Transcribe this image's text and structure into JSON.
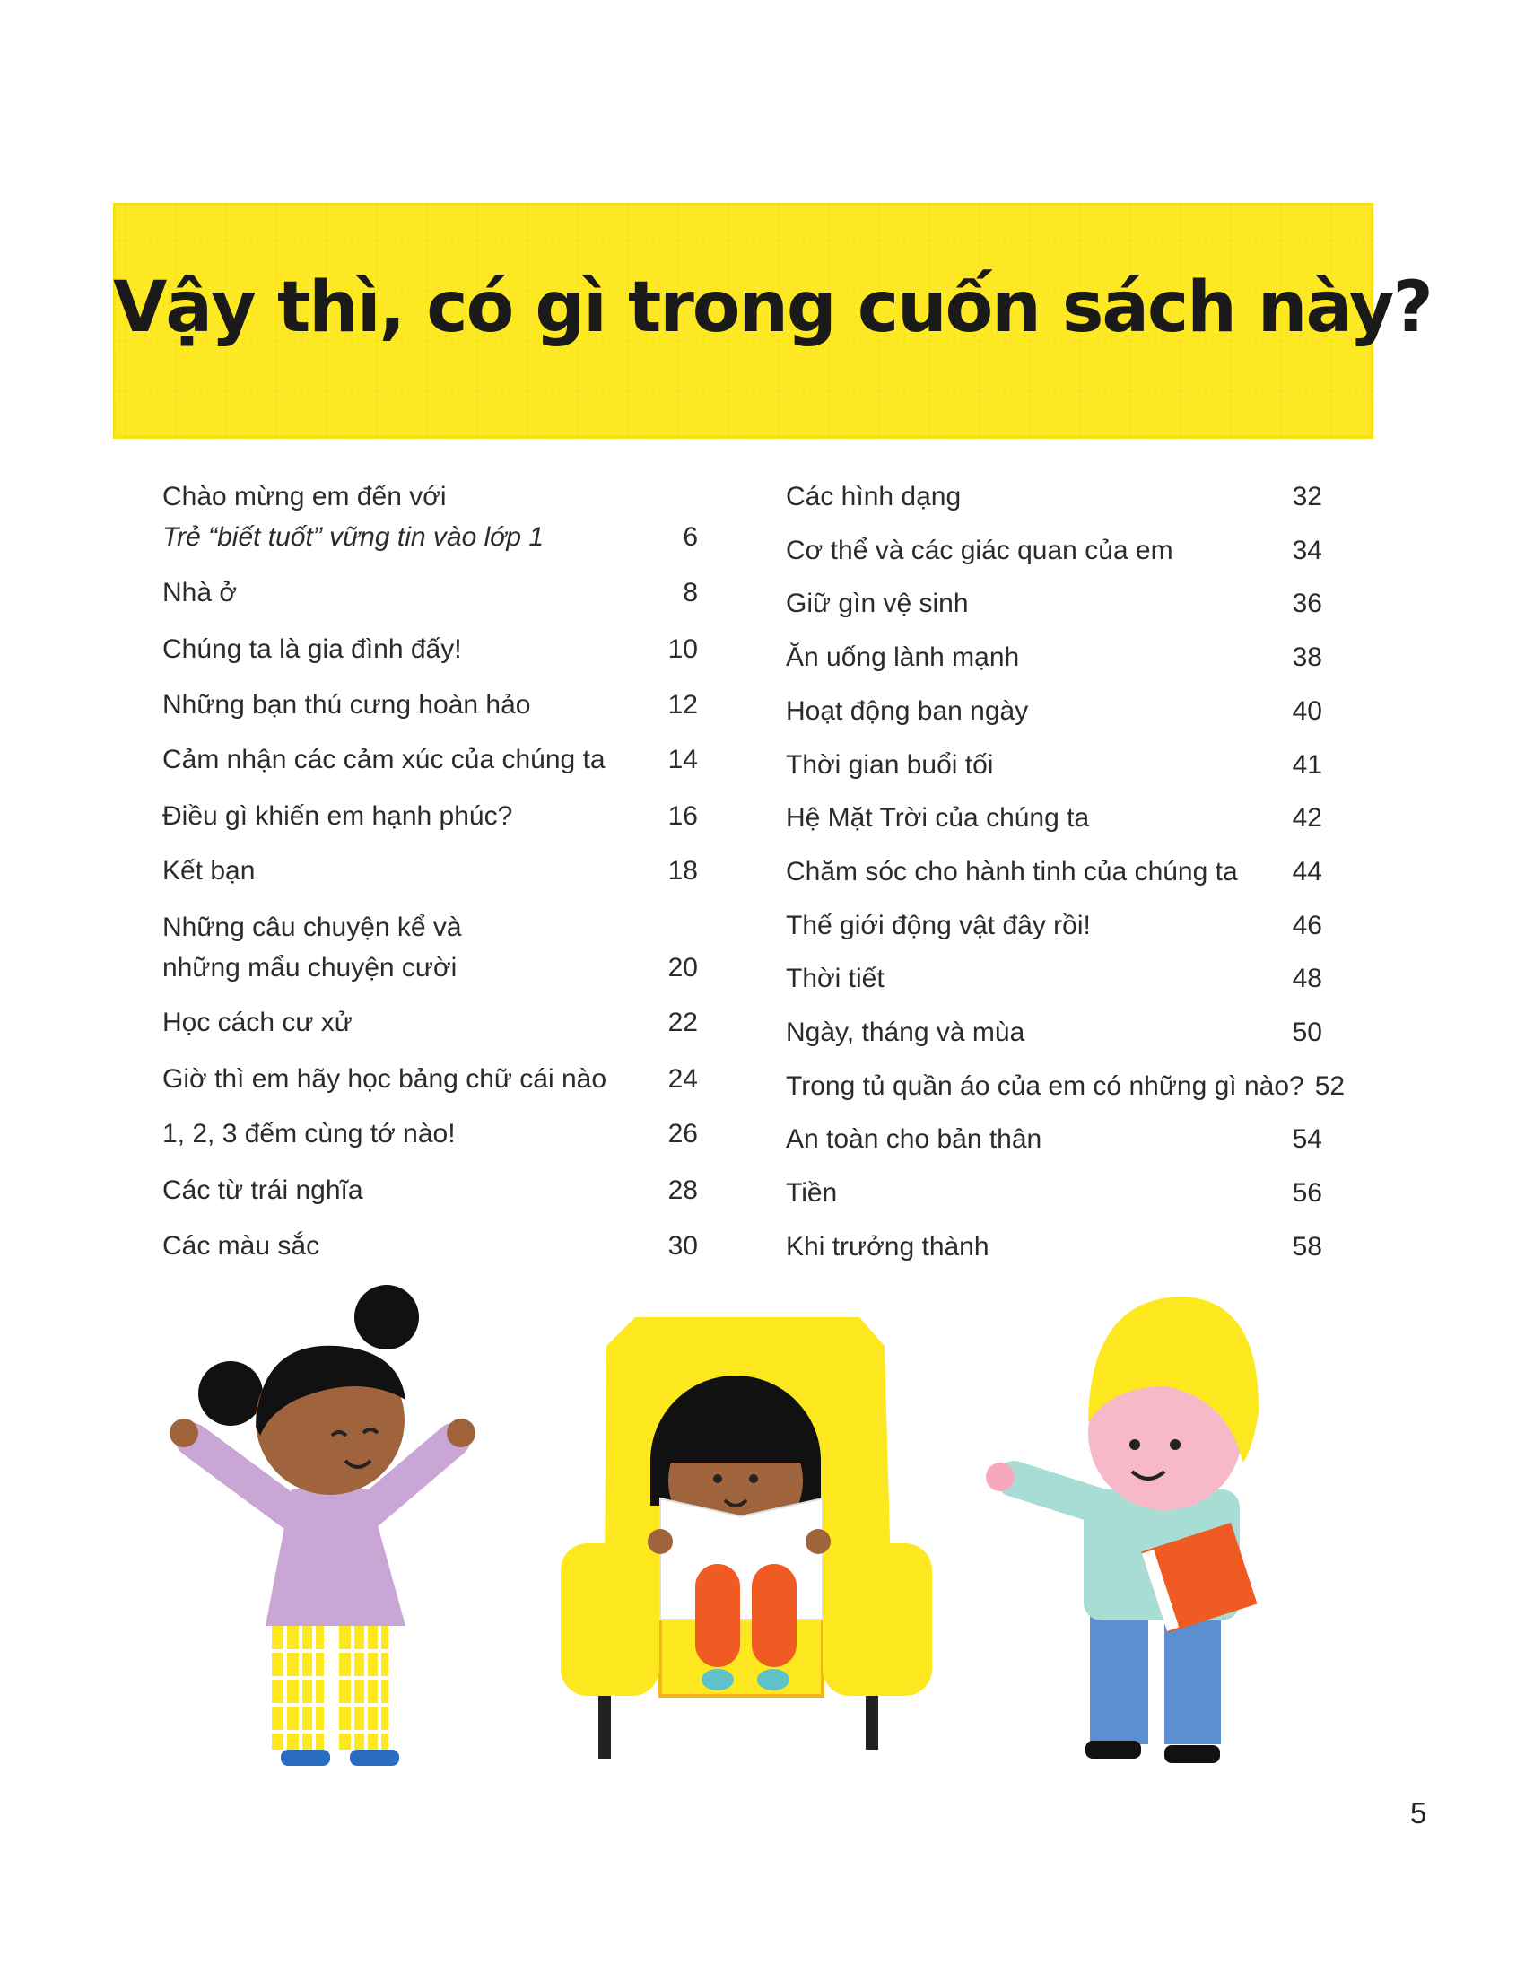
{
  "title": "Vậy thì, có gì trong cuốn sách này?",
  "colors": {
    "banner": "#fde81f",
    "text": "#2b2b2b"
  },
  "toc_left": [
    {
      "label": "Chào mừng em đến với",
      "label2": "Trẻ “biết tuốt” vững tin vào lớp 1",
      "page": "6"
    },
    {
      "label": "Nhà ở",
      "page": "8"
    },
    {
      "label": "Chúng ta là gia đình đấy!",
      "page": "10"
    },
    {
      "label": "Những bạn thú cưng hoàn hảo",
      "page": "12"
    },
    {
      "label": "Cảm nhận các cảm xúc của chúng ta",
      "page": "14"
    },
    {
      "label": "Điều gì khiến em hạnh phúc?",
      "page": "16"
    },
    {
      "label": "Kết bạn",
      "page": "18"
    },
    {
      "label": "Những câu chuyện kể và",
      "label2": "những mẩu chuyện cười",
      "page": "20"
    },
    {
      "label": "Học cách cư xử",
      "page": "22"
    },
    {
      "label": "Giờ thì em hãy học bảng chữ cái nào",
      "page": "24"
    },
    {
      "label": "1, 2, 3 đếm cùng tớ nào!",
      "page": "26"
    },
    {
      "label": "Các từ trái nghĩa",
      "page": "28"
    },
    {
      "label": "Các màu sắc",
      "page": "30"
    }
  ],
  "toc_right": [
    {
      "label": "Các hình dạng",
      "page": "32"
    },
    {
      "label": "Cơ thể và các giác quan của em",
      "page": "34"
    },
    {
      "label": "Giữ gìn vệ sinh",
      "page": "36"
    },
    {
      "label": "Ăn uống lành mạnh",
      "page": "38"
    },
    {
      "label": "Hoạt động ban ngày",
      "page": "40"
    },
    {
      "label": "Thời gian buổi tối",
      "page": "41"
    },
    {
      "label": "Hệ Mặt Trời của chúng ta",
      "page": "42"
    },
    {
      "label": "Chăm sóc cho hành tinh của chúng ta",
      "page": "44"
    },
    {
      "label": "Thế giới động vật đây rồi!",
      "page": "46"
    },
    {
      "label": "Thời tiết",
      "page": "48"
    },
    {
      "label": "Ngày, tháng và mùa",
      "page": "50"
    },
    {
      "label": "Trong tủ quần áo của em có những gì nào?",
      "page": "52"
    },
    {
      "label": "An toàn cho bản thân",
      "page": "54"
    },
    {
      "label": "Tiền",
      "page": "56"
    },
    {
      "label": "Khi trưởng thành",
      "page": "58"
    }
  ],
  "page_number": "5"
}
